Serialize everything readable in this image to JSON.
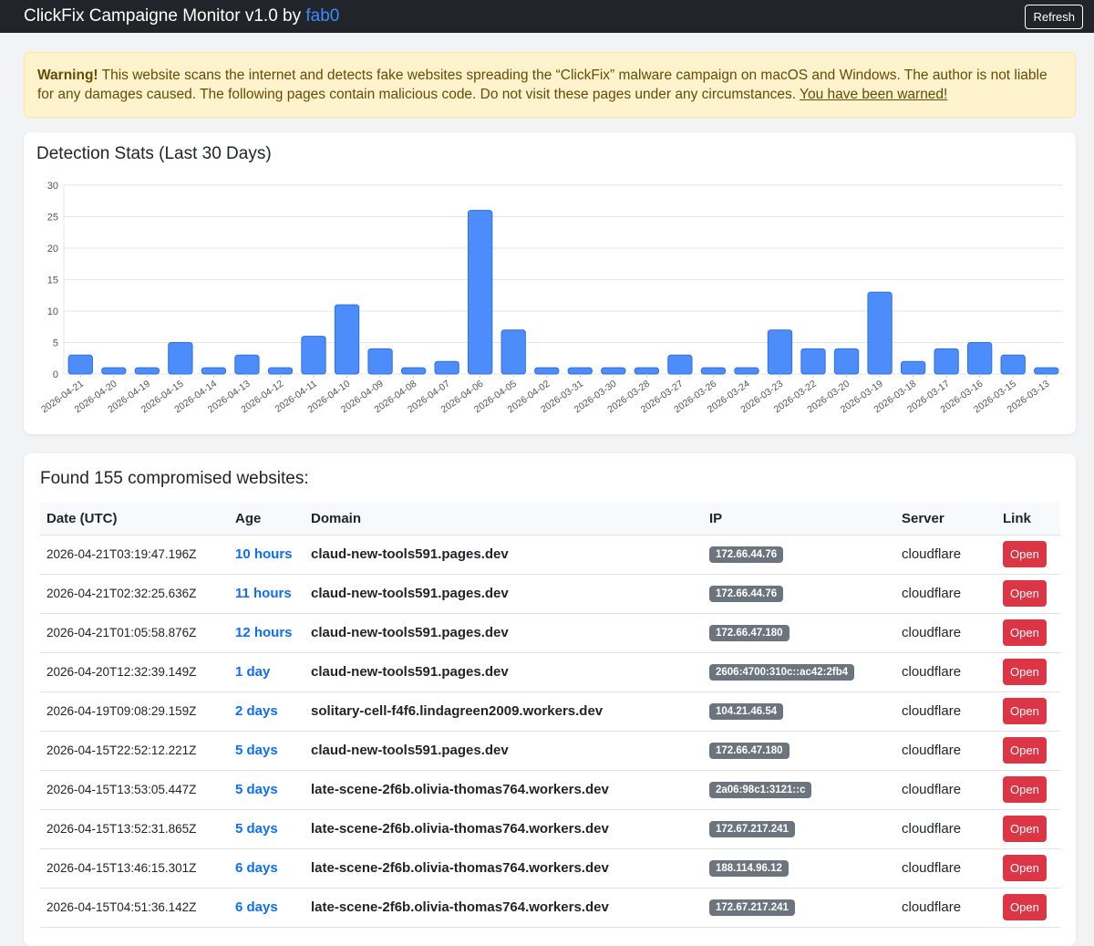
{
  "navbar": {
    "title_prefix": "ClickFix Campaigne Monitor v1.0 by ",
    "author": "fab0",
    "refresh_label": "Refresh"
  },
  "warning": {
    "strong": "Warning!",
    "text": " This website scans the internet and detects fake websites spreading the “ClickFix” malware campaign on macOS and Windows. The author is not liable for any damages caused. The following pages contain malicious code. Do not visit these pages under any circumstances. ",
    "link": "You have been warned!"
  },
  "stats": {
    "title": "Detection Stats (Last 30 Days)"
  },
  "chart_data": {
    "type": "bar",
    "categories": [
      "2026-04-21",
      "2026-04-20",
      "2026-04-19",
      "2026-04-15",
      "2026-04-14",
      "2026-04-13",
      "2026-04-12",
      "2026-04-11",
      "2026-04-10",
      "2026-04-09",
      "2026-04-08",
      "2026-04-07",
      "2026-04-06",
      "2026-04-05",
      "2026-04-02",
      "2026-03-31",
      "2026-03-30",
      "2026-03-28",
      "2026-03-27",
      "2026-03-26",
      "2026-03-24",
      "2026-03-23",
      "2026-03-22",
      "2026-03-20",
      "2026-03-19",
      "2026-03-18",
      "2026-03-17",
      "2026-03-16",
      "2026-03-15",
      "2026-03-13"
    ],
    "values": [
      3,
      1,
      1,
      5,
      1,
      3,
      1,
      6,
      11,
      4,
      1,
      2,
      26,
      7,
      1,
      1,
      1,
      1,
      3,
      1,
      1,
      7,
      4,
      4,
      13,
      2,
      4,
      5,
      3,
      1
    ],
    "yticks": [
      0,
      5,
      10,
      15,
      20,
      25,
      30
    ],
    "ylim": [
      0,
      30
    ],
    "grid": true,
    "bar_color": "#4d8cfb",
    "bar_border": "#2f6fe0"
  },
  "list": {
    "title": "Found 155 compromised websites:",
    "columns": [
      "Date (UTC)",
      "Age",
      "Domain",
      "IP",
      "Server",
      "Link"
    ],
    "open_label": "Open",
    "rows": [
      {
        "date": "2026-04-21T03:19:47.196Z",
        "age": "10 hours",
        "domain": "claud-new-tools591.pages.dev",
        "ip": "172.66.44.76",
        "server": "cloudflare"
      },
      {
        "date": "2026-04-21T02:32:25.636Z",
        "age": "11 hours",
        "domain": "claud-new-tools591.pages.dev",
        "ip": "172.66.44.76",
        "server": "cloudflare"
      },
      {
        "date": "2026-04-21T01:05:58.876Z",
        "age": "12 hours",
        "domain": "claud-new-tools591.pages.dev",
        "ip": "172.66.47.180",
        "server": "cloudflare"
      },
      {
        "date": "2026-04-20T12:32:39.149Z",
        "age": "1 day",
        "domain": "claud-new-tools591.pages.dev",
        "ip": "2606:4700:310c::ac42:2fb4",
        "server": "cloudflare"
      },
      {
        "date": "2026-04-19T09:08:29.159Z",
        "age": "2 days",
        "domain": "solitary-cell-f4f6.lindagreen2009.workers.dev",
        "ip": "104.21.46.54",
        "server": "cloudflare"
      },
      {
        "date": "2026-04-15T22:52:12.221Z",
        "age": "5 days",
        "domain": "claud-new-tools591.pages.dev",
        "ip": "172.66.47.180",
        "server": "cloudflare"
      },
      {
        "date": "2026-04-15T13:53:05.447Z",
        "age": "5 days",
        "domain": "late-scene-2f6b.olivia-thomas764.workers.dev",
        "ip": "2a06:98c1:3121::c",
        "server": "cloudflare"
      },
      {
        "date": "2026-04-15T13:52:31.865Z",
        "age": "5 days",
        "domain": "late-scene-2f6b.olivia-thomas764.workers.dev",
        "ip": "172.67.217.241",
        "server": "cloudflare"
      },
      {
        "date": "2026-04-15T13:46:15.301Z",
        "age": "6 days",
        "domain": "late-scene-2f6b.olivia-thomas764.workers.dev",
        "ip": "188.114.96.12",
        "server": "cloudflare"
      },
      {
        "date": "2026-04-15T04:51:36.142Z",
        "age": "6 days",
        "domain": "late-scene-2f6b.olivia-thomas764.workers.dev",
        "ip": "172.67.217.241",
        "server": "cloudflare"
      }
    ]
  }
}
